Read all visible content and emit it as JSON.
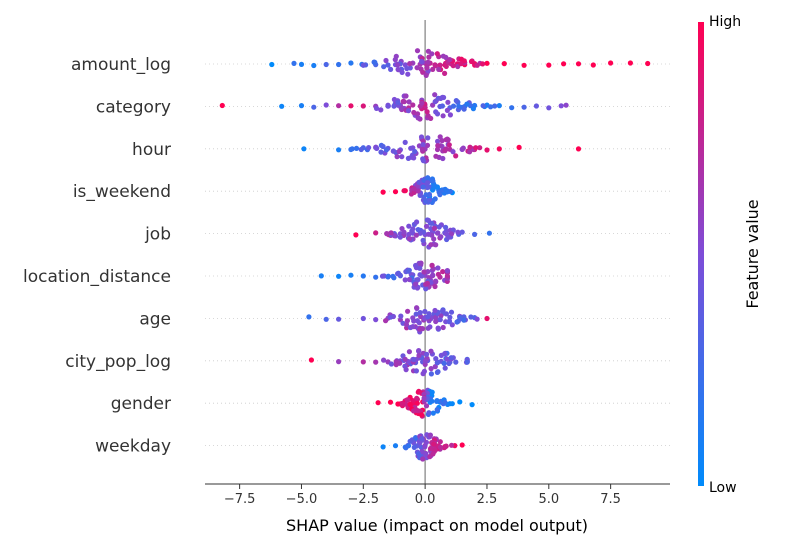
{
  "chart_data": {
    "type": "scatter",
    "subtype": "shap-beeswarm",
    "xlabel": "SHAP value (impact on model output)",
    "xlim": [
      -8.9,
      9.9
    ],
    "xticks": [
      -7.5,
      -5.0,
      -2.5,
      0.0,
      2.5,
      5.0,
      7.5
    ],
    "xtick_labels": [
      "−7.5",
      "−5.0",
      "−2.5",
      "0.0",
      "2.5",
      "5.0",
      "7.5"
    ],
    "zero_line": true,
    "colorbar": {
      "title": "Feature value",
      "high_label": "High",
      "low_label": "Low",
      "low_color": "#008bfb",
      "high_color": "#ff0052"
    },
    "features": [
      {
        "name": "amount_log",
        "min": -6.2,
        "max": 9.0,
        "points": [
          [
            -6.2,
            0.0
          ],
          [
            -5.3,
            0.2
          ],
          [
            -5.0,
            0.1
          ],
          [
            -4.5,
            0.1
          ],
          [
            -4.0,
            0.3
          ],
          [
            -3.5,
            0.2
          ],
          [
            -3.0,
            0.15
          ],
          [
            -2.5,
            0.25
          ],
          [
            -2.0,
            0.3
          ],
          [
            -1.5,
            0.35
          ],
          [
            -1.2,
            0.45
          ],
          [
            -1.0,
            0.5
          ],
          [
            -0.8,
            0.5
          ],
          [
            -0.5,
            0.6
          ],
          [
            -0.2,
            0.65
          ],
          [
            0.0,
            0.7
          ],
          [
            0.2,
            0.75
          ],
          [
            0.4,
            0.8
          ],
          [
            0.6,
            0.8
          ],
          [
            0.8,
            0.85
          ],
          [
            1.0,
            0.9
          ],
          [
            1.3,
            0.9
          ],
          [
            1.6,
            0.95
          ],
          [
            2.0,
            0.95
          ],
          [
            2.5,
            1.0
          ],
          [
            3.2,
            1.0
          ],
          [
            4.0,
            1.0
          ],
          [
            5.0,
            1.0
          ],
          [
            5.6,
            1.0
          ],
          [
            6.2,
            1.0
          ],
          [
            6.8,
            1.0
          ],
          [
            7.5,
            1.0
          ],
          [
            8.3,
            1.0
          ],
          [
            9.0,
            1.0
          ]
        ]
      },
      {
        "name": "category",
        "min": -8.2,
        "max": 5.7,
        "points": [
          [
            -8.2,
            1.0
          ],
          [
            -5.8,
            0.05
          ],
          [
            -5.0,
            0.1
          ],
          [
            -4.5,
            0.3
          ],
          [
            -4.0,
            0.5
          ],
          [
            -3.5,
            0.7
          ],
          [
            -3.0,
            0.9
          ],
          [
            -2.5,
            0.85
          ],
          [
            -2.0,
            0.6
          ],
          [
            -1.5,
            0.4
          ],
          [
            -1.0,
            0.55
          ],
          [
            -0.5,
            0.7
          ],
          [
            0.0,
            0.8
          ],
          [
            0.3,
            0.6
          ],
          [
            0.6,
            0.4
          ],
          [
            1.0,
            0.35
          ],
          [
            1.5,
            0.2
          ],
          [
            2.0,
            0.15
          ],
          [
            2.5,
            0.1
          ],
          [
            3.0,
            0.1
          ],
          [
            3.5,
            0.2
          ],
          [
            4.0,
            0.3
          ],
          [
            4.5,
            0.4
          ],
          [
            5.0,
            0.45
          ],
          [
            5.5,
            0.5
          ],
          [
            5.7,
            0.55
          ]
        ]
      },
      {
        "name": "hour",
        "min": -4.9,
        "max": 6.2,
        "points": [
          [
            -4.9,
            0.05
          ],
          [
            -3.5,
            0.1
          ],
          [
            -3.0,
            0.2
          ],
          [
            -2.5,
            0.3
          ],
          [
            -2.0,
            0.35
          ],
          [
            -1.5,
            0.4
          ],
          [
            -1.0,
            0.45
          ],
          [
            -0.5,
            0.5
          ],
          [
            0.0,
            0.6
          ],
          [
            0.5,
            0.65
          ],
          [
            1.0,
            0.7
          ],
          [
            1.5,
            0.75
          ],
          [
            2.0,
            0.85
          ],
          [
            2.5,
            0.9
          ],
          [
            3.0,
            0.95
          ],
          [
            3.8,
            1.0
          ],
          [
            6.2,
            1.0
          ]
        ]
      },
      {
        "name": "is_weekend",
        "min": -1.7,
        "max": 1.2,
        "points": [
          [
            -1.7,
            1.0
          ],
          [
            -1.2,
            1.0
          ],
          [
            -0.8,
            1.0
          ],
          [
            0.3,
            0.0
          ],
          [
            0.7,
            0.0
          ],
          [
            1.1,
            0.0
          ]
        ]
      },
      {
        "name": "job",
        "min": -2.8,
        "max": 2.6,
        "points": [
          [
            -2.8,
            1.0
          ],
          [
            -2.0,
            0.8
          ],
          [
            -1.5,
            0.6
          ],
          [
            -1.0,
            0.5
          ],
          [
            -0.5,
            0.45
          ],
          [
            0.0,
            0.5
          ],
          [
            0.5,
            0.55
          ],
          [
            1.0,
            0.45
          ],
          [
            1.5,
            0.4
          ],
          [
            2.0,
            0.3
          ],
          [
            2.6,
            0.2
          ]
        ]
      },
      {
        "name": "location_distance",
        "min": -4.2,
        "max": 0.9,
        "points": [
          [
            -4.2,
            0.1
          ],
          [
            -3.5,
            0.05
          ],
          [
            -3.0,
            0.1
          ],
          [
            -2.5,
            0.15
          ],
          [
            -2.0,
            0.2
          ],
          [
            -1.5,
            0.25
          ],
          [
            -1.0,
            0.3
          ],
          [
            -0.5,
            0.4
          ],
          [
            0.0,
            0.55
          ],
          [
            0.3,
            0.65
          ],
          [
            0.6,
            0.7
          ],
          [
            0.9,
            0.75
          ]
        ]
      },
      {
        "name": "age",
        "min": -4.7,
        "max": 2.5,
        "points": [
          [
            -4.7,
            0.2
          ],
          [
            -4.0,
            0.3
          ],
          [
            -3.5,
            0.4
          ],
          [
            -2.5,
            0.45
          ],
          [
            -2.0,
            0.5
          ],
          [
            -1.5,
            0.55
          ],
          [
            -1.0,
            0.6
          ],
          [
            -0.5,
            0.55
          ],
          [
            0.0,
            0.5
          ],
          [
            0.5,
            0.45
          ],
          [
            1.0,
            0.4
          ],
          [
            1.5,
            0.35
          ],
          [
            2.0,
            0.3
          ],
          [
            2.5,
            0.9
          ]
        ]
      },
      {
        "name": "city_pop_log",
        "min": -4.6,
        "max": 1.7,
        "points": [
          [
            -4.6,
            1.0
          ],
          [
            -3.5,
            0.6
          ],
          [
            -2.5,
            0.7
          ],
          [
            -2.0,
            0.65
          ],
          [
            -1.5,
            0.6
          ],
          [
            -1.0,
            0.55
          ],
          [
            -0.5,
            0.5
          ],
          [
            0.0,
            0.45
          ],
          [
            0.5,
            0.4
          ],
          [
            1.0,
            0.35
          ],
          [
            1.7,
            0.3
          ]
        ]
      },
      {
        "name": "gender",
        "min": -1.9,
        "max": 1.9,
        "points": [
          [
            -1.9,
            1.0
          ],
          [
            -1.4,
            1.0
          ],
          [
            -1.0,
            1.0
          ],
          [
            -0.5,
            1.0
          ],
          [
            -0.1,
            1.0
          ],
          [
            0.2,
            0.0
          ],
          [
            0.6,
            0.0
          ],
          [
            1.0,
            0.0
          ],
          [
            1.4,
            0.0
          ],
          [
            1.9,
            0.0
          ]
        ]
      },
      {
        "name": "weekday",
        "min": -1.7,
        "max": 1.5,
        "points": [
          [
            -1.7,
            0.05
          ],
          [
            -1.2,
            0.1
          ],
          [
            -0.8,
            0.15
          ],
          [
            -0.4,
            0.3
          ],
          [
            0.0,
            0.6
          ],
          [
            0.4,
            0.8
          ],
          [
            0.8,
            0.9
          ],
          [
            1.2,
            0.95
          ],
          [
            1.5,
            1.0
          ]
        ]
      }
    ]
  }
}
